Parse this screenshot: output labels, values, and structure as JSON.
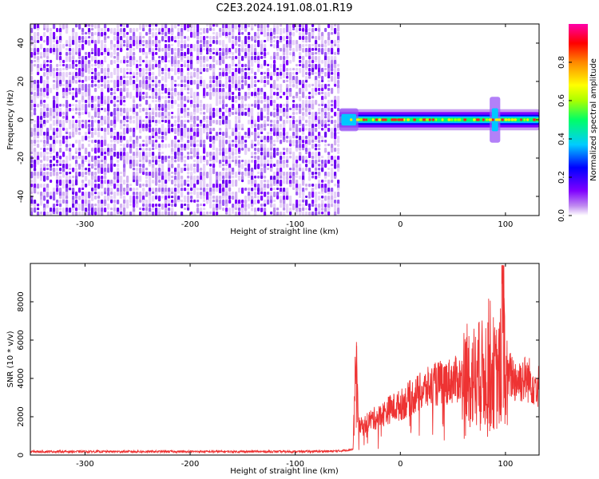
{
  "title": "C2E3.2024.191.08.01.R19",
  "chart_data": [
    {
      "type": "heatmap",
      "xlabel": "Height of straight line (km)",
      "ylabel": "Frequency (Hz)",
      "xlim": [
        -352,
        132
      ],
      "ylim": [
        -50,
        50
      ],
      "xticks": [
        -300,
        -200,
        -100,
        0,
        100
      ],
      "yticks": [
        -40,
        -20,
        0,
        20,
        40
      ],
      "noise_region_x": [
        -352,
        -58
      ],
      "signal_center_hz": 0,
      "signal_features": [
        {
          "x": [
            -58,
            -40
          ],
          "half_width_hz": 6
        },
        {
          "x": [
            85,
            95
          ],
          "half_width_hz": 12
        }
      ],
      "colorbar": {
        "label": "Normalized spectral amplitude",
        "ticks": [
          0.0,
          0.2,
          0.4,
          0.6,
          0.8
        ],
        "tick_labels": [
          "0.0",
          "0.2",
          "0.4",
          "0.6",
          "0.8"
        ],
        "range": [
          0,
          1
        ],
        "colors": [
          "#ffffff",
          "#c08cf0",
          "#7f00ff",
          "#0000ff",
          "#00ccff",
          "#00ff66",
          "#aaff00",
          "#ffff00",
          "#ff8800",
          "#ff0000",
          "#ff00aa"
        ]
      }
    },
    {
      "type": "line",
      "xlabel": "Height of straight line (km)",
      "ylabel": "SNR (10 * v/v)",
      "xlim": [
        -352,
        132
      ],
      "ylim": [
        0,
        10000
      ],
      "xticks": [
        -300,
        -200,
        -100,
        0,
        100
      ],
      "yticks": [
        0,
        2000,
        4000,
        6000,
        8000
      ],
      "color": "#ee3333",
      "series": [
        {
          "x": [
            -352,
            -300,
            -200,
            -100,
            -60,
            -45,
            -42,
            -40,
            -35,
            -30,
            -20,
            -10,
            0,
            10,
            20,
            30,
            40,
            50,
            60,
            70,
            80,
            85,
            90,
            95,
            98,
            100,
            105,
            110,
            120,
            132
          ],
          "y": [
            180,
            180,
            180,
            180,
            200,
            300,
            5700,
            1500,
            1500,
            1800,
            2000,
            2400,
            2600,
            3000,
            3300,
            3600,
            3800,
            3900,
            4000,
            4100,
            4200,
            5000,
            4000,
            4200,
            9900,
            3500,
            4200,
            3900,
            4000,
            3600
          ]
        }
      ]
    }
  ]
}
